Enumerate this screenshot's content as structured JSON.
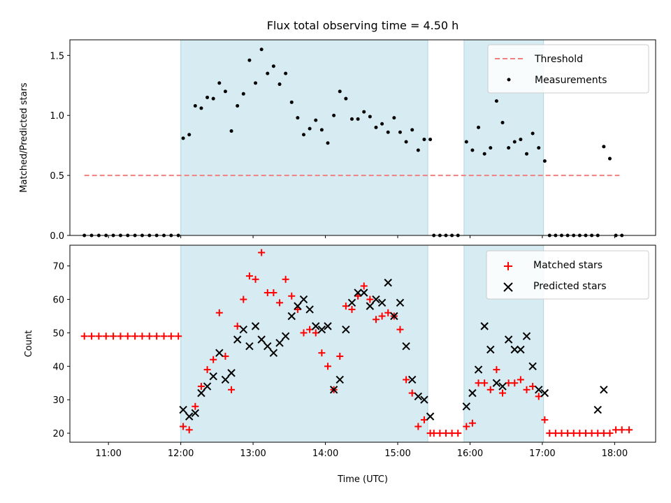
{
  "chart_data": [
    {
      "type": "scatter",
      "title": "Flux total observing time = 4.50 h",
      "xlabel": "",
      "ylabel": "Matched/Predicted stars",
      "xlim": [
        "10:28",
        "18:34"
      ],
      "ylim": [
        0,
        1.63
      ],
      "xticks": [
        "11:00",
        "12:00",
        "13:00",
        "14:00",
        "15:00",
        "16:00",
        "17:00",
        "18:00"
      ],
      "xtick_labels_visible": false,
      "yticks": [
        0.0,
        0.5,
        1.0,
        1.5
      ],
      "ytick_labels": [
        "0.0",
        "0.5",
        "1.0",
        "1.5"
      ],
      "shaded_intervals": [
        [
          "12:00",
          "15:25"
        ],
        [
          "15:55",
          "17:01"
        ]
      ],
      "shade_color": "#add8e6",
      "legend_position": "top-right",
      "threshold": {
        "name": "Threshold",
        "value": 0.5,
        "x_range": [
          "10:40",
          "18:04"
        ],
        "color": "#f08080",
        "style": "dashed"
      },
      "series": [
        {
          "name": "Measurements",
          "color": "#000000",
          "marker": "dot",
          "x": [
            "10:40",
            "10:46",
            "10:52",
            "10:58",
            "11:04",
            "11:10",
            "11:16",
            "11:22",
            "11:28",
            "11:34",
            "11:40",
            "11:46",
            "11:52",
            "11:58",
            "12:02",
            "12:07",
            "12:12",
            "12:17",
            "12:22",
            "12:27",
            "12:32",
            "12:37",
            "12:42",
            "12:47",
            "12:52",
            "12:57",
            "13:02",
            "13:07",
            "13:12",
            "13:17",
            "13:22",
            "13:27",
            "13:32",
            "13:37",
            "13:42",
            "13:47",
            "13:52",
            "13:57",
            "14:02",
            "14:07",
            "14:12",
            "14:17",
            "14:22",
            "14:27",
            "14:32",
            "14:37",
            "14:42",
            "14:47",
            "14:52",
            "14:57",
            "15:02",
            "15:07",
            "15:12",
            "15:17",
            "15:22",
            "15:27",
            "15:30",
            "15:35",
            "15:40",
            "15:45",
            "15:50",
            "15:57",
            "16:02",
            "16:07",
            "16:12",
            "16:17",
            "16:22",
            "16:27",
            "16:32",
            "16:37",
            "16:42",
            "16:47",
            "16:52",
            "16:57",
            "17:02",
            "17:06",
            "17:11",
            "17:16",
            "17:21",
            "17:26",
            "17:31",
            "17:36",
            "17:41",
            "17:46",
            "17:51",
            "17:56",
            "18:01",
            "18:06"
          ],
          "y": [
            0,
            0,
            0,
            0,
            0,
            0,
            0,
            0,
            0,
            0,
            0,
            0,
            0,
            0,
            0.81,
            0.84,
            1.08,
            1.06,
            1.15,
            1.14,
            1.27,
            1.2,
            0.87,
            1.08,
            1.18,
            1.46,
            1.27,
            1.55,
            1.35,
            1.41,
            1.26,
            1.35,
            1.11,
            0.98,
            0.84,
            0.89,
            0.96,
            0.88,
            0.77,
            1.0,
            1.2,
            1.14,
            0.97,
            0.97,
            1.03,
            0.99,
            0.9,
            0.93,
            0.86,
            0.98,
            0.86,
            0.78,
            0.88,
            0.71,
            0.8,
            0.8,
            0,
            0,
            0,
            0,
            0,
            0.78,
            0.71,
            0.9,
            0.68,
            0.73,
            1.12,
            0.94,
            0.73,
            0.78,
            0.8,
            0.68,
            0.85,
            0.73,
            0.62,
            0,
            0,
            0,
            0,
            0,
            0,
            0,
            0,
            0,
            0.74,
            0.64,
            0,
            0
          ]
        }
      ]
    },
    {
      "type": "scatter",
      "title": "",
      "xlabel": "Time (UTC)",
      "ylabel": "Count",
      "xlim": [
        "10:28",
        "18:34"
      ],
      "ylim": [
        17.3,
        76.2
      ],
      "xticks": [
        "11:00",
        "12:00",
        "13:00",
        "14:00",
        "15:00",
        "16:00",
        "17:00",
        "18:00"
      ],
      "xtick_labels": [
        "11:00",
        "12:00",
        "13:00",
        "14:00",
        "15:00",
        "16:00",
        "17:00",
        "18:00"
      ],
      "yticks": [
        20,
        30,
        40,
        50,
        60,
        70
      ],
      "ytick_labels": [
        "20",
        "30",
        "40",
        "50",
        "60",
        "70"
      ],
      "shaded_intervals": [
        [
          "12:00",
          "15:25"
        ],
        [
          "15:55",
          "17:01"
        ]
      ],
      "shade_color": "#add8e6",
      "legend_position": "top-right",
      "series": [
        {
          "name": "Matched stars",
          "color": "#ff0000",
          "marker": "plus",
          "x": [
            "10:40",
            "10:46",
            "10:52",
            "10:58",
            "11:04",
            "11:10",
            "11:16",
            "11:22",
            "11:28",
            "11:34",
            "11:40",
            "11:46",
            "11:52",
            "11:58",
            "12:02",
            "12:07",
            "12:12",
            "12:17",
            "12:22",
            "12:27",
            "12:32",
            "12:37",
            "12:42",
            "12:47",
            "12:52",
            "12:57",
            "13:02",
            "13:07",
            "13:12",
            "13:17",
            "13:22",
            "13:27",
            "13:32",
            "13:37",
            "13:42",
            "13:47",
            "13:52",
            "13:57",
            "14:02",
            "14:07",
            "14:12",
            "14:17",
            "14:22",
            "14:27",
            "14:32",
            "14:37",
            "14:42",
            "14:47",
            "14:52",
            "14:57",
            "15:02",
            "15:07",
            "15:12",
            "15:17",
            "15:22",
            "15:27",
            "15:30",
            "15:35",
            "15:40",
            "15:45",
            "15:50",
            "15:57",
            "16:02",
            "16:07",
            "16:12",
            "16:17",
            "16:22",
            "16:27",
            "16:32",
            "16:37",
            "16:42",
            "16:47",
            "16:52",
            "16:57",
            "17:02",
            "17:06",
            "17:11",
            "17:16",
            "17:21",
            "17:26",
            "17:31",
            "17:36",
            "17:41",
            "17:46",
            "17:51",
            "17:56",
            "18:01",
            "18:06"
          ],
          "values": [
            49,
            49,
            49,
            49,
            49,
            49,
            49,
            49,
            49,
            49,
            49,
            49,
            49,
            49,
            22,
            21,
            28,
            34,
            39,
            42,
            56,
            43,
            33,
            52,
            60,
            67,
            66,
            74,
            62,
            62,
            59,
            66,
            61,
            57,
            50,
            51,
            50,
            44,
            40,
            33,
            43,
            58,
            57,
            61,
            64,
            60,
            54,
            55,
            56,
            55,
            51,
            36,
            32,
            22,
            24,
            20,
            20,
            20,
            20,
            20,
            20,
            22,
            23,
            35,
            35,
            33,
            39,
            32,
            35,
            35,
            36,
            33,
            34,
            31,
            24,
            20,
            20,
            20,
            20,
            20,
            20,
            20,
            20,
            20,
            20,
            20,
            21,
            21
          ],
          "extra_points": [
            {
              "x": "18:12",
              "value": 21
            }
          ]
        },
        {
          "name": "Predicted stars",
          "color": "#000000",
          "marker": "x",
          "x": [
            "12:02",
            "12:07",
            "12:12",
            "12:17",
            "12:22",
            "12:27",
            "12:32",
            "12:37",
            "12:42",
            "12:47",
            "12:52",
            "12:57",
            "13:02",
            "13:07",
            "13:12",
            "13:17",
            "13:22",
            "13:27",
            "13:32",
            "13:37",
            "13:42",
            "13:47",
            "13:52",
            "13:57",
            "14:02",
            "14:07",
            "14:12",
            "14:17",
            "14:22",
            "14:27",
            "14:32",
            "14:37",
            "14:42",
            "14:47",
            "14:52",
            "14:57",
            "15:02",
            "15:07",
            "15:12",
            "15:17",
            "15:22",
            "15:27",
            "15:57",
            "16:02",
            "16:07",
            "16:12",
            "16:17",
            "16:22",
            "16:27",
            "16:32",
            "16:37",
            "16:42",
            "16:47",
            "16:52",
            "16:57",
            "17:02",
            "17:46",
            "17:51"
          ],
          "values": [
            27,
            25,
            26,
            32,
            34,
            37,
            44,
            36,
            38,
            48,
            51,
            46,
            52,
            48,
            46,
            44,
            47,
            49,
            55,
            58,
            60,
            57,
            52,
            51,
            52,
            33,
            36,
            51,
            59,
            62,
            62,
            58,
            60,
            59,
            65,
            55,
            59,
            46,
            36,
            31,
            30,
            25,
            28,
            32,
            39,
            52,
            45,
            35,
            34,
            48,
            45,
            45,
            49,
            40,
            33,
            32,
            27,
            33
          ]
        }
      ]
    }
  ]
}
